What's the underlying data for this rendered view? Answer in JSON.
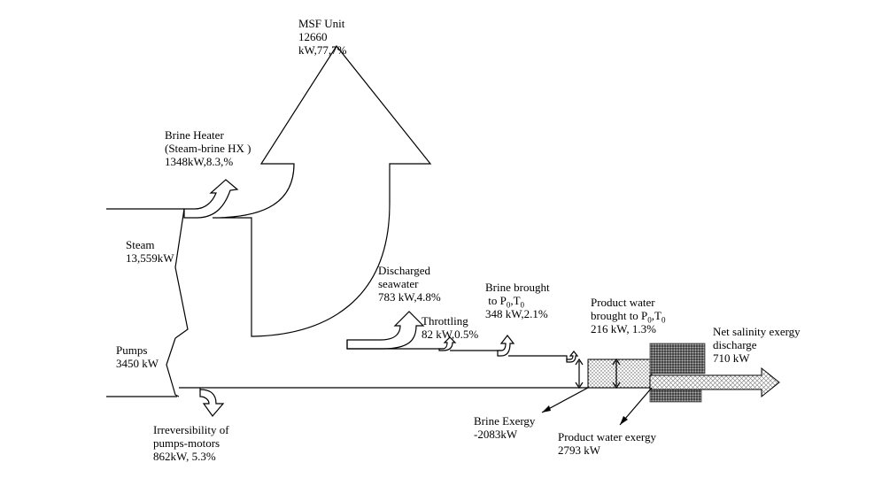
{
  "labels": {
    "msf_unit": [
      "MSF Unit",
      "12660",
      "kW,77,7%"
    ],
    "brine_heater": [
      "Brine Heater",
      "(Steam-brine HX )",
      "1348kW,8.3,%"
    ],
    "steam": [
      "Steam",
      "13,559kW"
    ],
    "pumps": [
      "Pumps",
      "3450 kW"
    ],
    "irreversibility": [
      "Irreversibility of",
      "pumps-motors",
      "862kW, 5.3%"
    ],
    "discharged_seawater": [
      "Discharged",
      "seawater",
      "783 kW,4.8%"
    ],
    "throttling": [
      "Throttling",
      "82 kW,0.5%"
    ],
    "brine_brought": {
      "line1": "Brine brought",
      "line2_prefix": "to P",
      "line2_mid": ",T",
      "sub": "0",
      "line3": "348 kW,2.1%"
    },
    "product_water_brought": {
      "line1": "Product water",
      "line2_prefix": "brought to P",
      "line2_mid": ",T",
      "sub": "0",
      "line3": "216 kW, 1.3%"
    },
    "net_salinity": [
      "Net salinity exergy",
      "discharge",
      "710 kW"
    ],
    "brine_exergy": [
      "Brine Exergy",
      "-2083kW"
    ],
    "product_water_exergy": [
      "Product water exergy",
      "2793 kW"
    ]
  }
}
